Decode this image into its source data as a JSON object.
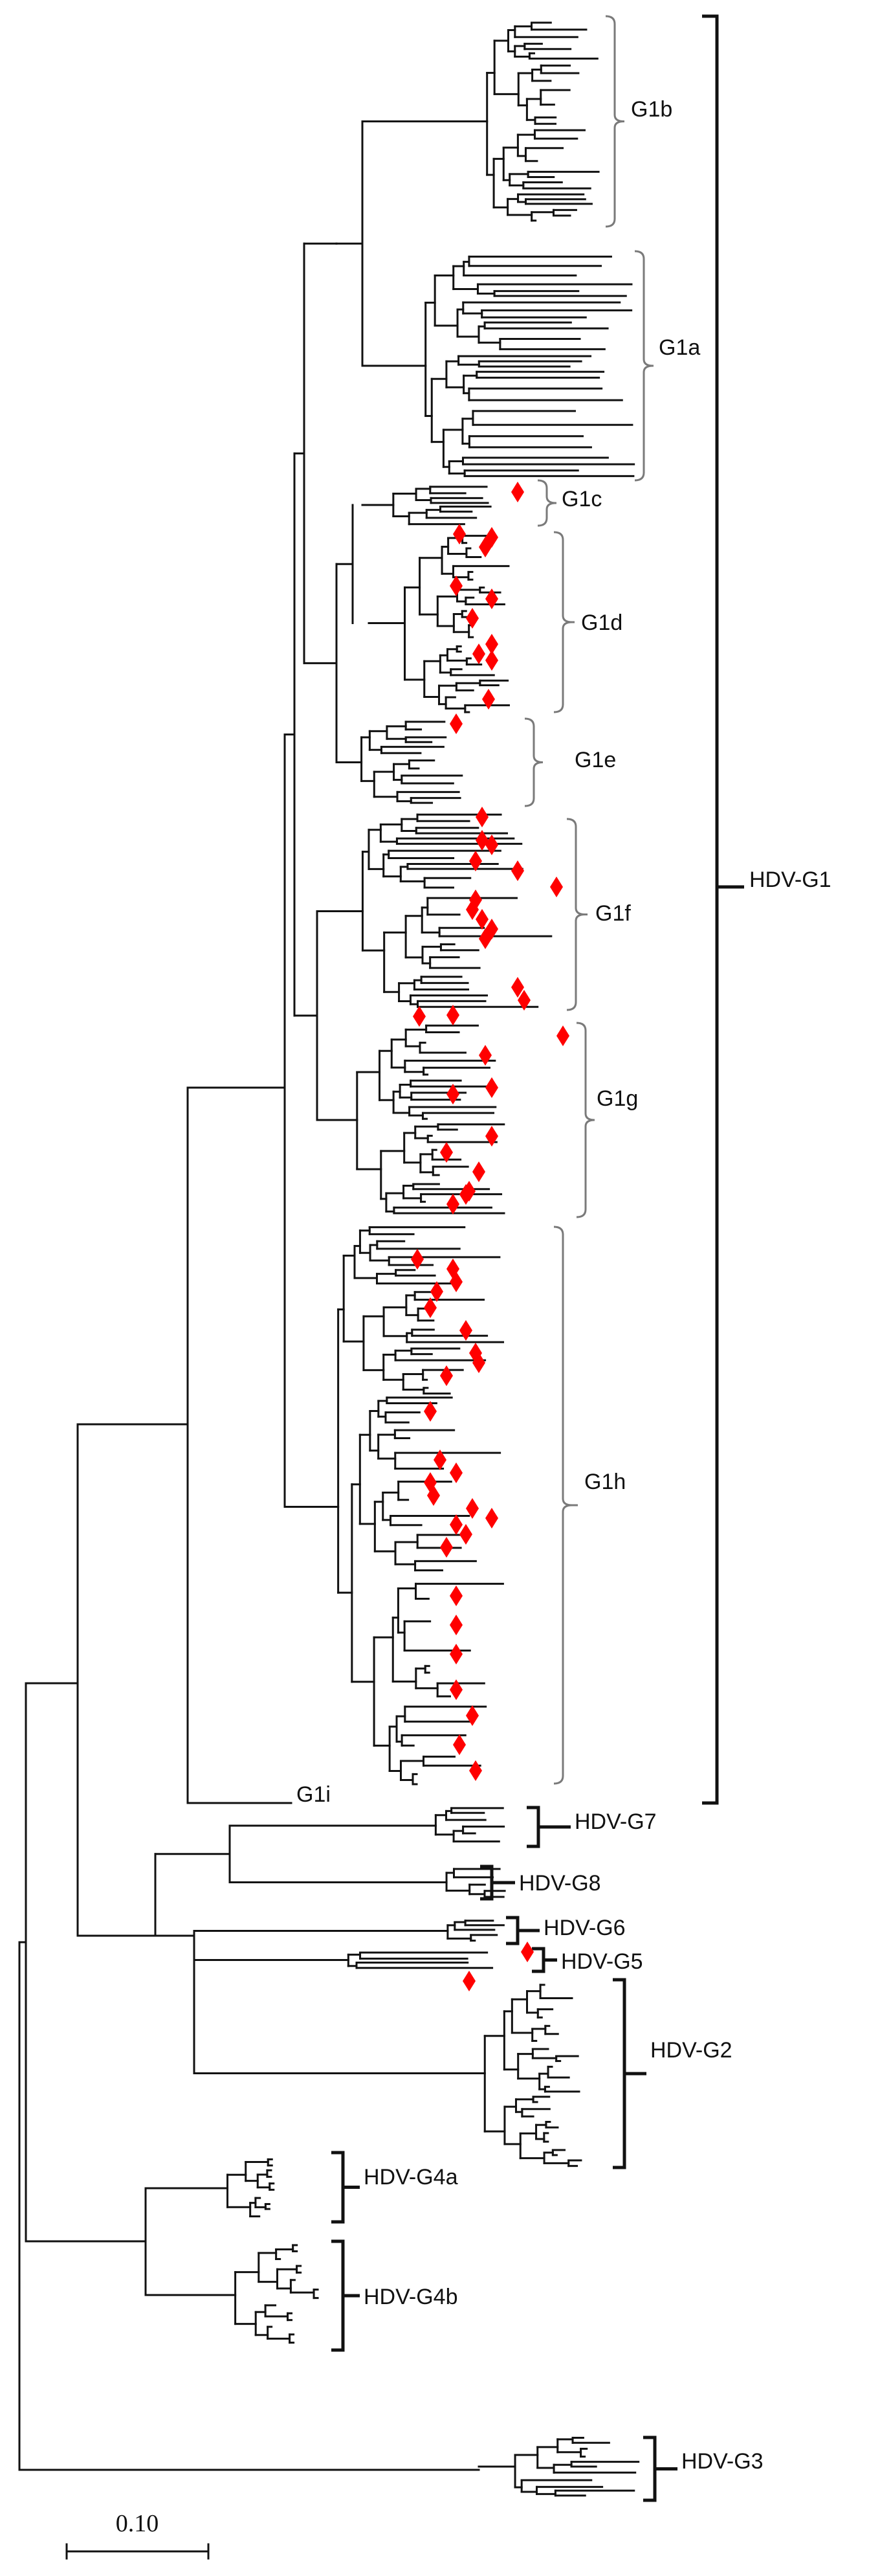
{
  "figure": {
    "marker_color": "#ff0000",
    "branch_color": "#111111",
    "scale_bar_label": "0.10"
  },
  "clades": [
    {
      "id": "g1b",
      "label": "G1b"
    },
    {
      "id": "g1a",
      "label": "G1a"
    },
    {
      "id": "g1c",
      "label": "G1c"
    },
    {
      "id": "g1d",
      "label": "G1d"
    },
    {
      "id": "g1e",
      "label": "G1e"
    },
    {
      "id": "g1f",
      "label": "G1f"
    },
    {
      "id": "g1g",
      "label": "G1g"
    },
    {
      "id": "g1h",
      "label": "G1h"
    },
    {
      "id": "g1i",
      "label": "G1i"
    },
    {
      "id": "hdv-g1",
      "label": "HDV-G1"
    },
    {
      "id": "hdv-g7",
      "label": "HDV-G7"
    },
    {
      "id": "hdv-g8",
      "label": "HDV-G8"
    },
    {
      "id": "hdv-g6",
      "label": "HDV-G6"
    },
    {
      "id": "hdv-g5",
      "label": "HDV-G5"
    },
    {
      "id": "hdv-g2",
      "label": "HDV-G2"
    },
    {
      "id": "hdv-g4a",
      "label": "HDV-G4a"
    },
    {
      "id": "hdv-g4b",
      "label": "HDV-G4b"
    },
    {
      "id": "hdv-g3",
      "label": "HDV-G3"
    }
  ]
}
